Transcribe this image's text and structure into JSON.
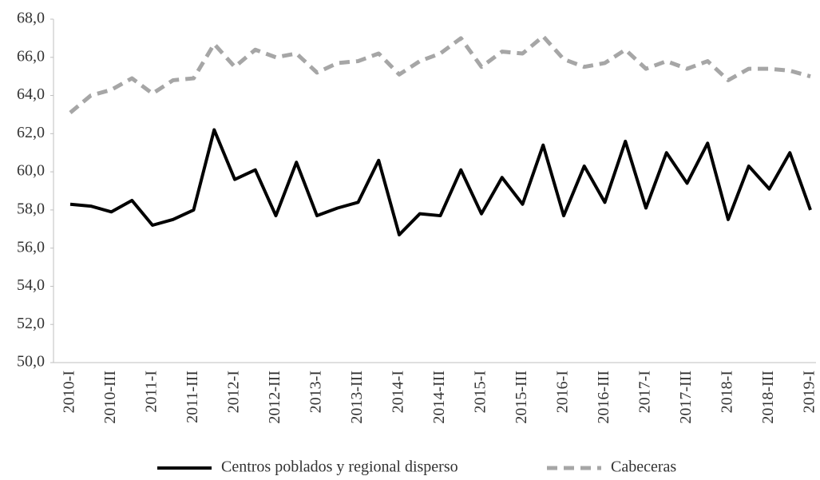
{
  "chart_data": {
    "type": "line",
    "categories": [
      "2010-I",
      null,
      "2010-III",
      null,
      "2011-I",
      null,
      "2011-III",
      null,
      "2012-I",
      null,
      "2012-III",
      null,
      "2013-I",
      null,
      "2013-III",
      null,
      "2014-I",
      null,
      "2014-III",
      null,
      "2015-I",
      null,
      "2015-III",
      null,
      "2016-I",
      null,
      "2016-III",
      null,
      "2017-I",
      null,
      "2017-III",
      null,
      "2018-I",
      null,
      "2018-III",
      null,
      "2019-I"
    ],
    "series": [
      {
        "name": "Centros poblados y regional disperso",
        "color": "#000000",
        "dashed": false,
        "values": [
          58.3,
          58.2,
          57.9,
          58.5,
          57.2,
          57.5,
          58.0,
          62.2,
          59.6,
          60.1,
          57.7,
          60.5,
          57.7,
          58.1,
          58.4,
          60.6,
          56.7,
          57.8,
          57.7,
          60.1,
          57.8,
          59.7,
          58.3,
          61.4,
          57.7,
          60.3,
          58.4,
          61.6,
          58.1,
          61.0,
          59.4,
          61.5,
          57.5,
          60.3,
          59.1,
          61.0,
          58.0
        ]
      },
      {
        "name": "Cabeceras",
        "color": "#a6a6a6",
        "dashed": true,
        "values": [
          63.1,
          64.0,
          64.3,
          64.9,
          64.1,
          64.8,
          64.9,
          66.7,
          65.5,
          66.4,
          66.0,
          66.2,
          65.2,
          65.7,
          65.8,
          66.2,
          65.1,
          65.8,
          66.2,
          67.0,
          65.5,
          66.3,
          66.2,
          67.1,
          65.9,
          65.5,
          65.7,
          66.4,
          65.4,
          65.8,
          65.4,
          65.8,
          64.8,
          65.4,
          65.4,
          65.3,
          65.0
        ]
      }
    ],
    "ylim": [
      50,
      68
    ],
    "yticks": [
      {
        "value": 50,
        "label": "50,0"
      },
      {
        "value": 52,
        "label": "52,0"
      },
      {
        "value": 54,
        "label": "54,0"
      },
      {
        "value": 56,
        "label": "56,0"
      },
      {
        "value": 58,
        "label": "58,0"
      },
      {
        "value": 60,
        "label": "60,0"
      },
      {
        "value": 62,
        "label": "62,0"
      },
      {
        "value": 64,
        "label": "64,0"
      },
      {
        "value": 66,
        "label": "66,0"
      },
      {
        "value": 68,
        "label": "68,0"
      }
    ],
    "grid": false,
    "legend": "bottom"
  }
}
